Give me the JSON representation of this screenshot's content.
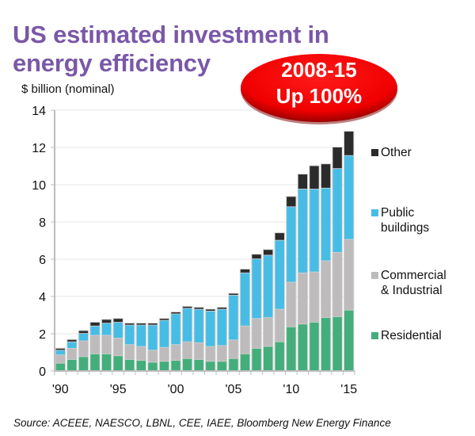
{
  "title": "US estimated investment in energy efficiency",
  "unit_label": "$ billion (nominal)",
  "badge": {
    "line1": "2008-15",
    "line2": "Up 100%",
    "color": "#ff0000"
  },
  "source": "Source: ACEEE, NAESCO, LBNL, CEE, IAEE, Bloomberg New Energy Finance",
  "legend": [
    {
      "label_lines": [
        "Other"
      ],
      "color": "#2b2b2b"
    },
    {
      "label_lines": [
        "Public",
        "buildings"
      ],
      "color": "#47bde6"
    },
    {
      "label_lines": [
        "Commercial",
        "& Industrial"
      ],
      "color": "#bdbbbb"
    },
    {
      "label_lines": [
        "Residential"
      ],
      "color": "#43ae7b"
    }
  ],
  "chart_data": {
    "type": "bar",
    "stacked": true,
    "title": "US estimated investment in energy efficiency",
    "xlabel": "",
    "ylabel": "$ billion (nominal)",
    "ylim": [
      0,
      14
    ],
    "yticks": [
      0,
      2,
      4,
      6,
      8,
      10,
      12,
      14
    ],
    "grid": true,
    "legend_position": "right",
    "categories": [
      1990,
      1991,
      1992,
      1993,
      1994,
      1995,
      1996,
      1997,
      1998,
      1999,
      2000,
      2001,
      2002,
      2003,
      2004,
      2005,
      2006,
      2007,
      2008,
      2009,
      2010,
      2011,
      2012,
      2013,
      2014,
      2015
    ],
    "xtick_labels": [
      {
        "year": 1990,
        "label": "'90"
      },
      {
        "year": 1995,
        "label": "'95"
      },
      {
        "year": 2000,
        "label": "'00"
      },
      {
        "year": 2005,
        "label": "'05"
      },
      {
        "year": 2010,
        "label": "'10"
      },
      {
        "year": 2015,
        "label": "'15"
      }
    ],
    "series": [
      {
        "name": "Residential",
        "color": "#43ae7b",
        "values": [
          0.4,
          0.6,
          0.75,
          0.9,
          0.9,
          0.8,
          0.6,
          0.55,
          0.45,
          0.5,
          0.55,
          0.65,
          0.6,
          0.5,
          0.5,
          0.65,
          0.9,
          1.2,
          1.3,
          1.55,
          2.35,
          2.5,
          2.6,
          2.85,
          2.9,
          3.25
        ]
      },
      {
        "name": "Commercial & Industrial",
        "color": "#bdbbbb",
        "values": [
          0.45,
          0.6,
          0.85,
          1.0,
          1.0,
          0.95,
          0.8,
          0.75,
          0.65,
          0.75,
          0.85,
          0.9,
          0.9,
          0.8,
          0.85,
          1.0,
          1.5,
          1.6,
          1.55,
          1.75,
          2.4,
          2.75,
          2.7,
          3.05,
          3.45,
          3.8
        ]
      },
      {
        "name": "Public buildings",
        "color": "#47bde6",
        "values": [
          0.25,
          0.35,
          0.4,
          0.5,
          0.65,
          0.85,
          1.05,
          1.15,
          1.35,
          1.45,
          1.65,
          1.8,
          1.8,
          1.9,
          1.95,
          2.4,
          2.85,
          3.2,
          3.35,
          3.7,
          4.05,
          4.5,
          4.45,
          3.9,
          4.5,
          4.5
        ]
      },
      {
        "name": "Other",
        "color": "#2b2b2b",
        "values": [
          0.1,
          0.12,
          0.15,
          0.2,
          0.2,
          0.2,
          0.1,
          0.1,
          0.1,
          0.1,
          0.1,
          0.1,
          0.1,
          0.1,
          0.1,
          0.1,
          0.2,
          0.25,
          0.3,
          0.4,
          0.55,
          0.8,
          1.25,
          1.3,
          1.15,
          1.3
        ]
      }
    ]
  }
}
